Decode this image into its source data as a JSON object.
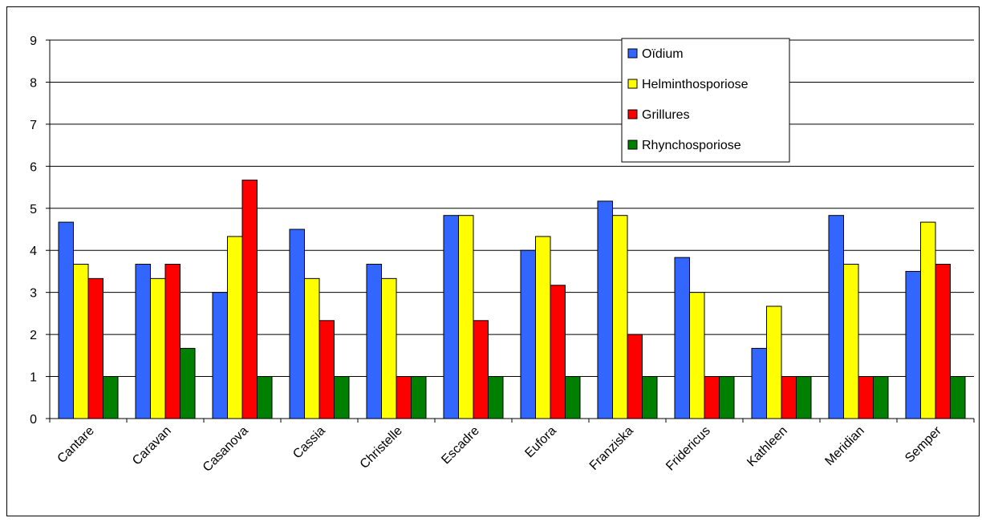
{
  "chart_data": {
    "type": "bar",
    "title": "",
    "xlabel": "",
    "ylabel": "",
    "ylim": [
      0,
      9
    ],
    "yticks": [
      0,
      1,
      2,
      3,
      4,
      5,
      6,
      7,
      8,
      9
    ],
    "grid": true,
    "legend_position": "top-right",
    "categories": [
      "Cantare",
      "Caravan",
      "Casanova",
      "Cassia",
      "Christelle",
      "Escadre",
      "Eufora",
      "Franziska",
      "Fridericus",
      "Kathleen",
      "Meridian",
      "Semper"
    ],
    "series": [
      {
        "name": "Oïdium",
        "color": "#3366ff",
        "values": [
          4.67,
          3.67,
          3.0,
          4.5,
          3.67,
          4.83,
          4.0,
          5.17,
          3.83,
          1.67,
          4.83,
          3.5
        ]
      },
      {
        "name": "Helminthosporiose",
        "color": "#ffff00",
        "values": [
          3.67,
          3.33,
          4.33,
          3.33,
          3.33,
          4.83,
          4.33,
          4.83,
          3.0,
          2.67,
          3.67,
          4.67
        ]
      },
      {
        "name": "Grillures",
        "color": "#ff0000",
        "values": [
          3.33,
          3.67,
          5.67,
          2.33,
          1.0,
          2.33,
          3.17,
          2.0,
          1.0,
          1.0,
          1.0,
          3.67
        ]
      },
      {
        "name": "Rhynchosporiose",
        "color": "#008000",
        "values": [
          1.0,
          1.67,
          1.0,
          1.0,
          1.0,
          1.0,
          1.0,
          1.0,
          1.0,
          1.0,
          1.0,
          1.0
        ]
      }
    ]
  }
}
